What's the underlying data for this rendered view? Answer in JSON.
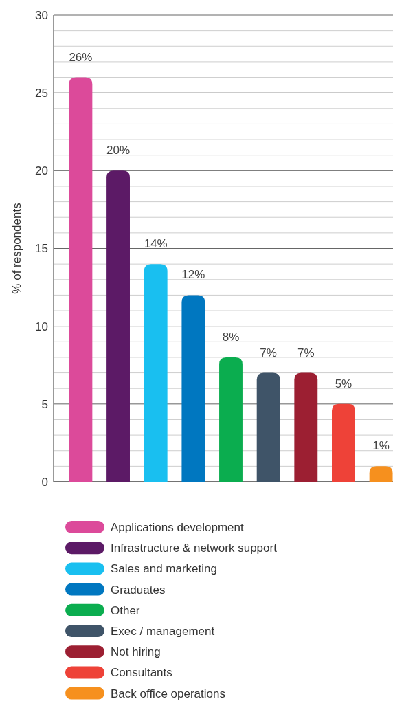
{
  "chart_data": {
    "type": "bar",
    "ylabel": "% of respondents",
    "categories": [
      null,
      null,
      null,
      null,
      null,
      null,
      null,
      null,
      null
    ],
    "series": [
      {
        "name": "Applications development",
        "color": "#dc4a9a",
        "values": [
          26,
          null,
          null,
          null,
          null,
          null,
          null,
          null,
          null
        ],
        "value_labels": [
          "26%",
          null,
          null,
          null,
          null,
          null,
          null,
          null,
          null
        ]
      },
      {
        "name": "Infrastructure & network support",
        "color": "#5c1a66",
        "values": [
          null,
          20,
          null,
          null,
          null,
          null,
          null,
          null,
          null
        ],
        "value_labels": [
          null,
          "20%",
          null,
          null,
          null,
          null,
          null,
          null,
          null
        ]
      },
      {
        "name": "Sales and marketing",
        "color": "#19bff0",
        "values": [
          null,
          null,
          14,
          null,
          null,
          null,
          null,
          null,
          null
        ],
        "value_labels": [
          null,
          null,
          "14%",
          null,
          null,
          null,
          null,
          null,
          null
        ]
      },
      {
        "name": "Graduates",
        "color": "#0077c0",
        "values": [
          null,
          null,
          null,
          12,
          null,
          null,
          null,
          null,
          null
        ],
        "value_labels": [
          null,
          null,
          null,
          "12%",
          null,
          null,
          null,
          null,
          null
        ]
      },
      {
        "name": "Other",
        "color": "#0bad4f",
        "values": [
          null,
          null,
          null,
          null,
          8,
          null,
          null,
          null,
          null
        ],
        "value_labels": [
          null,
          null,
          null,
          null,
          "8%",
          null,
          null,
          null,
          null
        ]
      },
      {
        "name": "Exec / management",
        "color": "#3f5468",
        "values": [
          null,
          null,
          null,
          null,
          null,
          7,
          null,
          null,
          null
        ],
        "value_labels": [
          null,
          null,
          null,
          null,
          null,
          "7%",
          null,
          null,
          null
        ]
      },
      {
        "name": "Not hiring",
        "color": "#9c1f32",
        "values": [
          null,
          null,
          null,
          null,
          null,
          null,
          7,
          null,
          null
        ],
        "value_labels": [
          null,
          null,
          null,
          null,
          null,
          null,
          "7%",
          null,
          null
        ]
      },
      {
        "name": "Consultants",
        "color": "#ee4238",
        "values": [
          null,
          null,
          null,
          null,
          null,
          null,
          null,
          5,
          null
        ],
        "value_labels": [
          null,
          null,
          null,
          null,
          null,
          null,
          null,
          "5%",
          null
        ]
      },
      {
        "name": "Back office operations",
        "color": "#f6901e",
        "values": [
          null,
          null,
          null,
          null,
          null,
          null,
          null,
          null,
          1
        ],
        "value_labels": [
          null,
          null,
          null,
          null,
          null,
          null,
          null,
          null,
          "1%"
        ]
      }
    ],
    "ylim": [
      0,
      30
    ],
    "yticks": [
      0,
      {
        "value": 1,
        "label": null
      },
      {
        "value": 2,
        "label": null
      },
      {
        "value": 3,
        "label": null
      },
      {
        "value": 4,
        "label": null
      },
      5,
      {
        "value": 6,
        "label": null
      },
      {
        "value": 7,
        "label": null
      },
      {
        "value": 8,
        "label": null
      },
      {
        "value": 9,
        "label": null
      },
      10,
      {
        "value": 11,
        "label": null
      },
      {
        "value": 12,
        "label": null
      },
      {
        "value": 13,
        "label": null
      },
      {
        "value": 14,
        "label": null
      },
      15,
      {
        "value": 16,
        "label": null
      },
      {
        "value": 17,
        "label": null
      },
      {
        "value": 18,
        "label": null
      },
      {
        "value": 19,
        "label": null
      },
      20,
      {
        "value": 21,
        "label": null
      },
      {
        "value": 22,
        "label": null
      },
      {
        "value": 23,
        "label": null
      },
      {
        "value": 24,
        "label": null
      },
      25,
      {
        "value": 26,
        "label": null
      },
      {
        "value": 27,
        "label": null
      },
      {
        "value": 28,
        "label": null
      },
      {
        "value": 29,
        "label": null
      },
      30
    ],
    "grid": "y",
    "legend": "bottom"
  }
}
